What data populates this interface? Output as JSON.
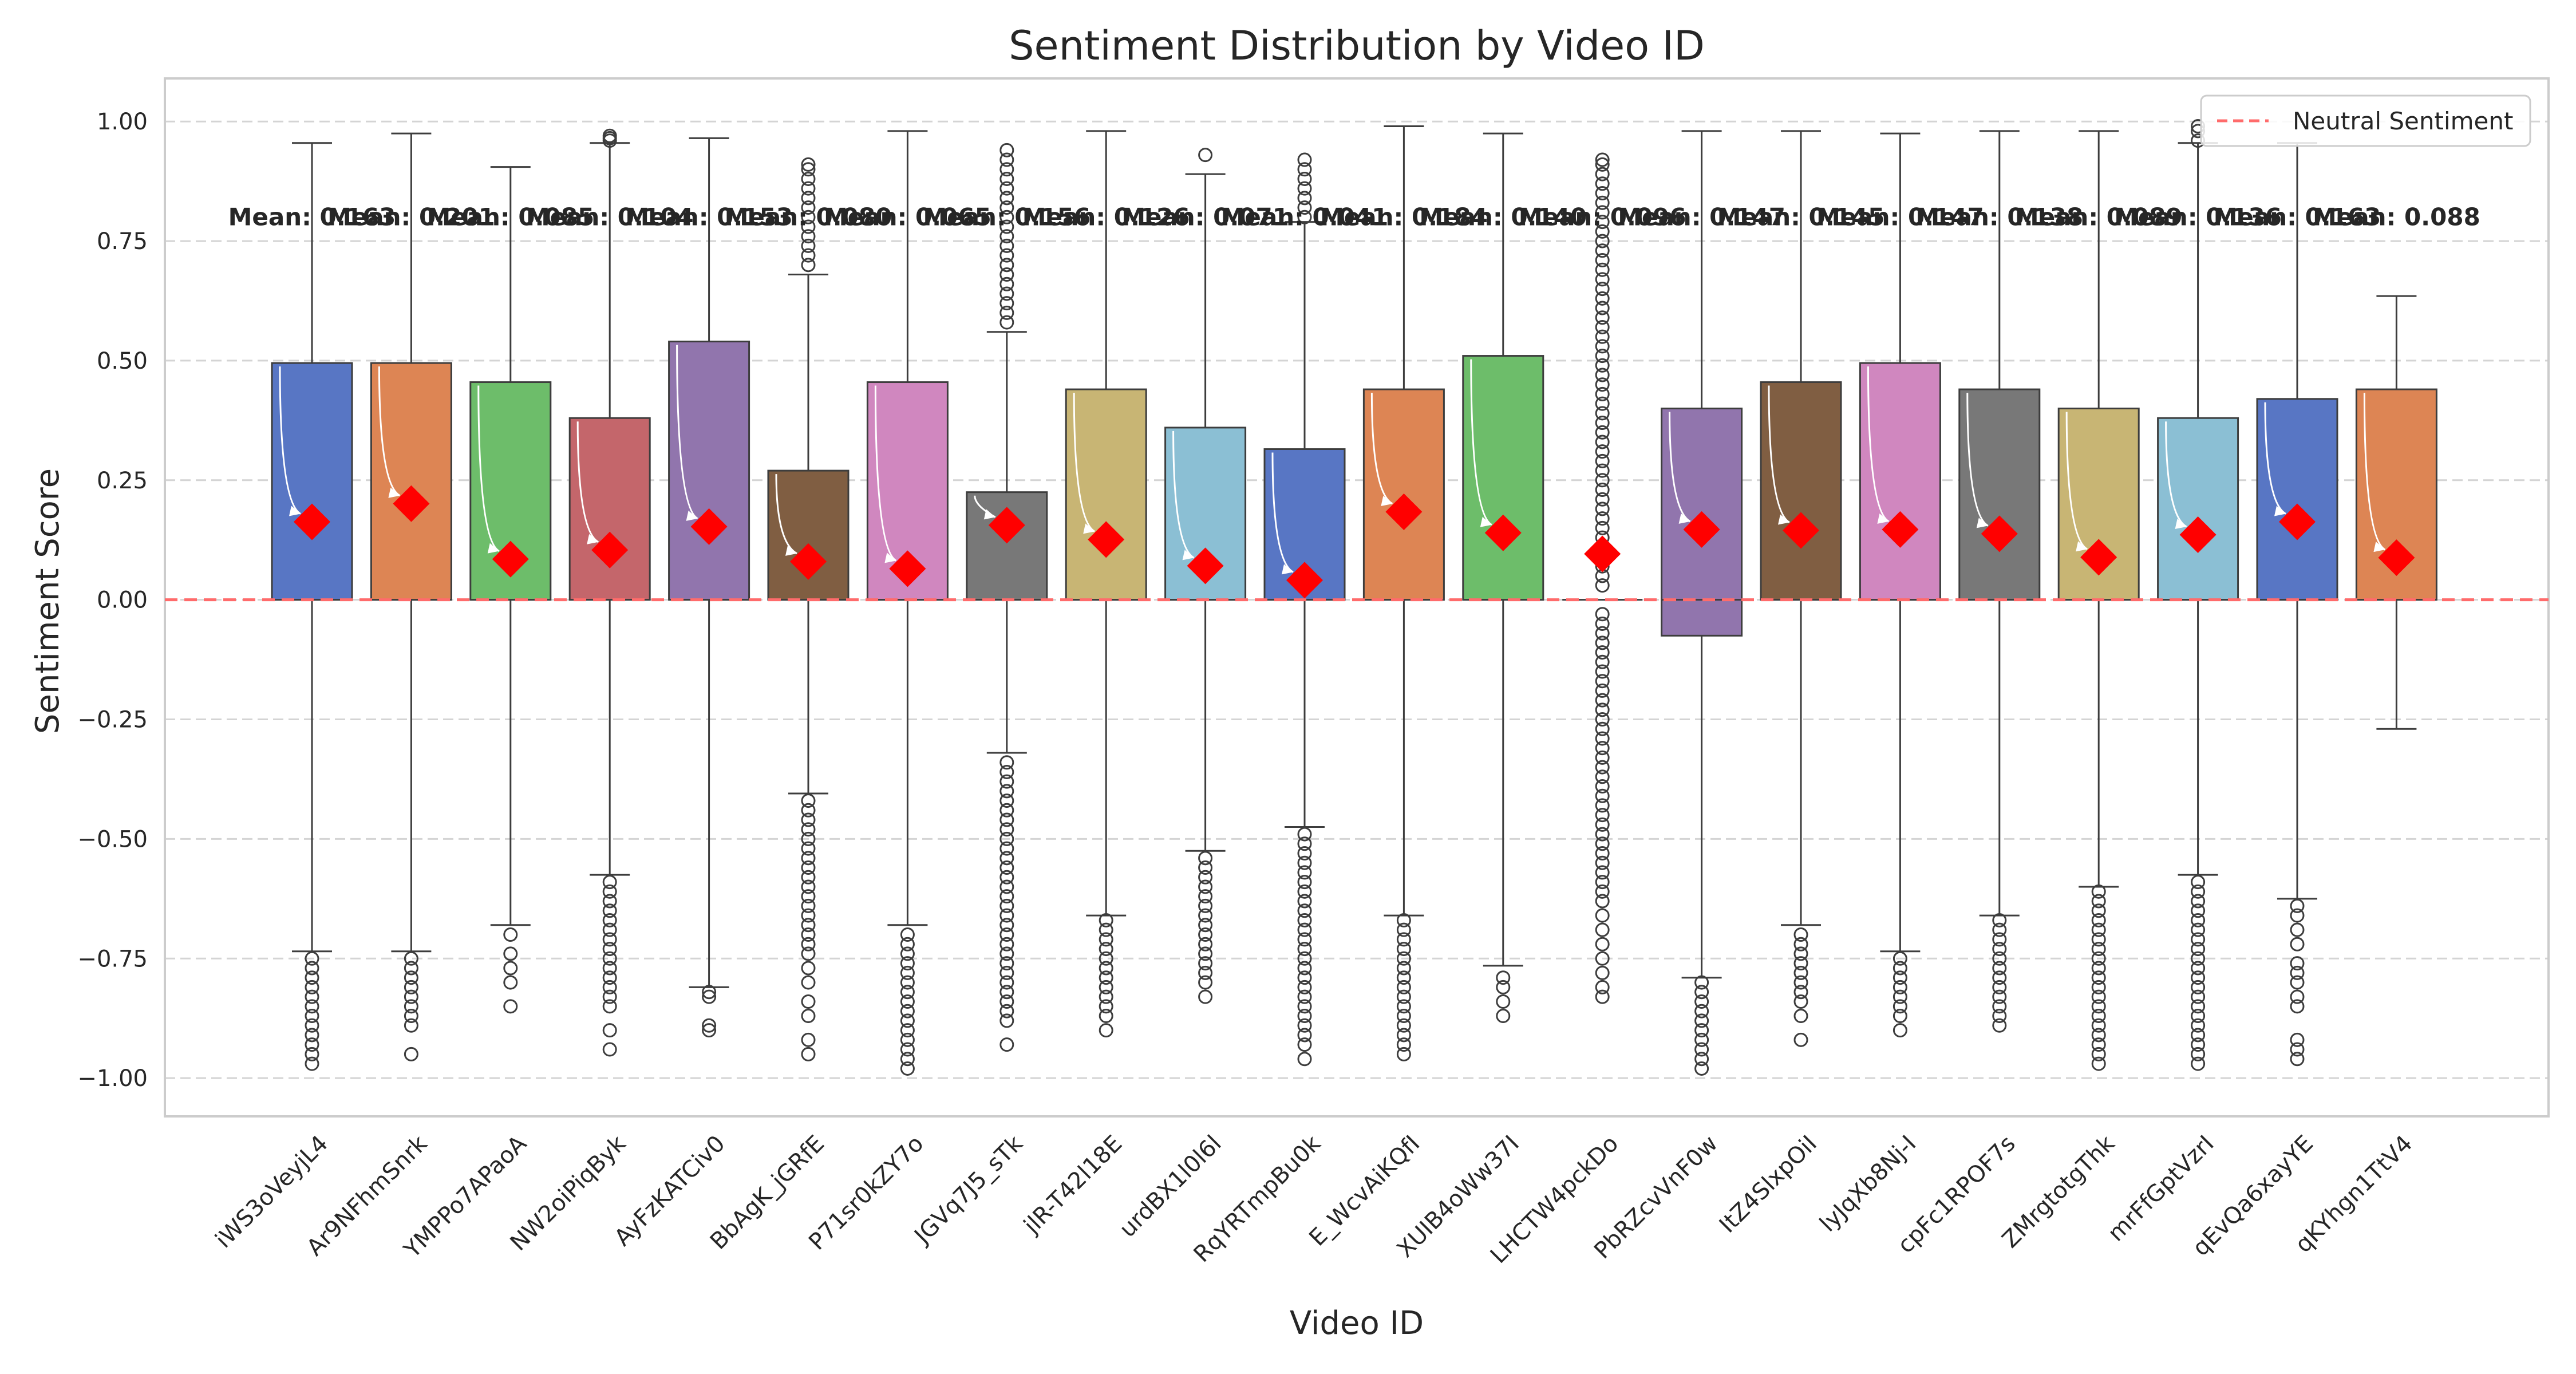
{
  "chart_data": {
    "type": "box",
    "title": "Sentiment Distribution by Video ID",
    "xlabel": "Video ID",
    "ylabel": "Sentiment Score",
    "ylim": [
      -1.08,
      1.09
    ],
    "yticks": [
      -1.0,
      -0.75,
      -0.5,
      -0.25,
      0.0,
      0.25,
      0.5,
      0.75,
      1.0
    ],
    "ytick_labels": [
      "−1.00",
      "−0.75",
      "−0.50",
      "−0.25",
      "0.00",
      "0.25",
      "0.50",
      "0.75",
      "1.00"
    ],
    "grid": true,
    "legend": {
      "placement": "top-right",
      "entries": [
        {
          "label": "Neutral Sentiment",
          "color": "#ff6b6b",
          "style": "dashed"
        }
      ]
    },
    "reference_line": {
      "y": 0.0,
      "label": "Neutral Sentiment",
      "color": "#ff6b6b"
    },
    "mean_marker_color": "#ff0000",
    "mean_label_y": 0.8,
    "categories": [
      "iWS3oVeyjL4",
      "Ar9NFhmSnrk",
      "YMPPo7APaoA",
      "NW2oiPiqByk",
      "AyFzKATCiv0",
      "BbAgK_jGRfE",
      "P71sr0kZY7o",
      "JGVq7J5_sTk",
      "jlR-T42l18E",
      "urdBX1l0l6l",
      "RqYRTmpBu0k",
      "E_WcvAiKQfI",
      "XUIB4oWw37I",
      "LHCTW4pckDo",
      "PbRZcvVnF0w",
      "ItZ4SlxpOiI",
      "lyJqXb8Nj-I",
      "cpFc1RPOF7s",
      "ZMrgtotgThk",
      "mrFfGptVzrI",
      "qEvQa6xayYE",
      "qKYhgn1TtV4"
    ],
    "boxes": [
      {
        "q1": 0.0,
        "median": 0.0,
        "q3": 0.495,
        "whisker_low": -0.735,
        "whisker_high": 0.955,
        "mean": 0.163,
        "mean_label": "Mean: 0.163",
        "color": "#5876c4",
        "outliers": [
          -0.75,
          -0.77,
          -0.79,
          -0.81,
          -0.83,
          -0.85,
          -0.87,
          -0.89,
          -0.91,
          -0.93,
          -0.95,
          -0.97
        ]
      },
      {
        "q1": 0.0,
        "median": 0.0,
        "q3": 0.495,
        "whisker_low": -0.735,
        "whisker_high": 0.975,
        "mean": 0.201,
        "mean_label": "Mean: 0.201",
        "color": "#dd8554",
        "outliers": [
          -0.75,
          -0.77,
          -0.79,
          -0.81,
          -0.83,
          -0.85,
          -0.87,
          -0.89,
          -0.95
        ]
      },
      {
        "q1": 0.0,
        "median": 0.0,
        "q3": 0.455,
        "whisker_low": -0.68,
        "whisker_high": 0.905,
        "mean": 0.085,
        "mean_label": "Mean: 0.085",
        "color": "#6dbd6a",
        "outliers": [
          -0.7,
          -0.74,
          -0.77,
          -0.8,
          -0.85
        ]
      },
      {
        "q1": 0.0,
        "median": 0.0,
        "q3": 0.38,
        "whisker_low": -0.575,
        "whisker_high": 0.955,
        "mean": 0.104,
        "mean_label": "Mean: 0.104",
        "color": "#c4666b",
        "outliers": [
          -0.59,
          -0.61,
          -0.63,
          -0.65,
          -0.67,
          -0.69,
          -0.71,
          -0.73,
          -0.75,
          -0.77,
          -0.79,
          -0.81,
          -0.83,
          -0.85,
          -0.9,
          -0.94,
          0.96,
          0.965,
          0.97
        ]
      },
      {
        "q1": 0.0,
        "median": 0.0,
        "q3": 0.54,
        "whisker_low": -0.81,
        "whisker_high": 0.965,
        "mean": 0.153,
        "mean_label": "Mean: 0.153",
        "color": "#9175ad",
        "outliers": [
          -0.82,
          -0.83,
          -0.89,
          -0.9
        ]
      },
      {
        "q1": 0.0,
        "median": 0.0,
        "q3": 0.27,
        "whisker_low": -0.405,
        "whisker_high": 0.68,
        "mean": 0.08,
        "mean_label": "Mean: 0.080",
        "color": "#805e42",
        "outliers": [
          -0.42,
          -0.44,
          -0.46,
          -0.48,
          -0.5,
          -0.52,
          -0.54,
          -0.56,
          -0.58,
          -0.6,
          -0.62,
          -0.64,
          -0.66,
          -0.68,
          -0.7,
          -0.72,
          -0.74,
          -0.77,
          -0.8,
          -0.84,
          -0.87,
          -0.92,
          -0.95,
          0.7,
          0.72,
          0.74,
          0.76,
          0.78,
          0.8,
          0.82,
          0.84,
          0.86,
          0.88,
          0.9,
          0.91
        ]
      },
      {
        "q1": 0.0,
        "median": 0.0,
        "q3": 0.455,
        "whisker_low": -0.68,
        "whisker_high": 0.98,
        "mean": 0.065,
        "mean_label": "Mean: 0.065",
        "color": "#d087bf",
        "outliers": [
          -0.7,
          -0.72,
          -0.74,
          -0.76,
          -0.78,
          -0.8,
          -0.82,
          -0.84,
          -0.86,
          -0.88,
          -0.9,
          -0.92,
          -0.94,
          -0.96,
          -0.98
        ]
      },
      {
        "q1": 0.0,
        "median": 0.0,
        "q3": 0.225,
        "whisker_low": -0.32,
        "whisker_high": 0.56,
        "mean": 0.156,
        "mean_label": "Mean: 0.156",
        "color": "#787878",
        "outliers": [
          -0.34,
          -0.36,
          -0.38,
          -0.4,
          -0.42,
          -0.44,
          -0.46,
          -0.48,
          -0.5,
          -0.52,
          -0.54,
          -0.56,
          -0.58,
          -0.6,
          -0.62,
          -0.64,
          -0.66,
          -0.68,
          -0.7,
          -0.72,
          -0.74,
          -0.76,
          -0.78,
          -0.8,
          -0.82,
          -0.84,
          -0.86,
          -0.88,
          -0.93,
          0.58,
          0.6,
          0.62,
          0.64,
          0.66,
          0.68,
          0.7,
          0.72,
          0.74,
          0.76,
          0.78,
          0.8,
          0.82,
          0.84,
          0.86,
          0.88,
          0.9,
          0.92,
          0.94
        ]
      },
      {
        "q1": 0.0,
        "median": 0.0,
        "q3": 0.44,
        "whisker_low": -0.66,
        "whisker_high": 0.98,
        "mean": 0.126,
        "mean_label": "Mean: 0.126",
        "color": "#c8b574",
        "outliers": [
          -0.67,
          -0.69,
          -0.71,
          -0.73,
          -0.75,
          -0.77,
          -0.79,
          -0.81,
          -0.83,
          -0.85,
          -0.87,
          -0.9
        ]
      },
      {
        "q1": 0.0,
        "median": 0.0,
        "q3": 0.36,
        "whisker_low": -0.525,
        "whisker_high": 0.89,
        "mean": 0.071,
        "mean_label": "Mean: 0.071",
        "color": "#8bbfd4",
        "outliers": [
          -0.54,
          -0.56,
          -0.58,
          -0.6,
          -0.62,
          -0.64,
          -0.66,
          -0.68,
          -0.7,
          -0.72,
          -0.74,
          -0.76,
          -0.78,
          -0.8,
          -0.83,
          0.93
        ]
      },
      {
        "q1": 0.0,
        "median": 0.0,
        "q3": 0.315,
        "whisker_low": -0.475,
        "whisker_high": 0.79,
        "mean": 0.041,
        "mean_label": "Mean: 0.041",
        "color": "#5876c4",
        "outliers": [
          -0.49,
          -0.51,
          -0.53,
          -0.55,
          -0.57,
          -0.59,
          -0.61,
          -0.63,
          -0.65,
          -0.67,
          -0.69,
          -0.71,
          -0.73,
          -0.75,
          -0.77,
          -0.79,
          -0.81,
          -0.83,
          -0.85,
          -0.87,
          -0.89,
          -0.91,
          -0.93,
          -0.96,
          0.8,
          0.82,
          0.84,
          0.86,
          0.88,
          0.9,
          0.92
        ]
      },
      {
        "q1": 0.0,
        "median": 0.0,
        "q3": 0.44,
        "whisker_low": -0.66,
        "whisker_high": 0.99,
        "mean": 0.184,
        "mean_label": "Mean: 0.184",
        "color": "#dd8554",
        "outliers": [
          -0.67,
          -0.69,
          -0.71,
          -0.73,
          -0.75,
          -0.77,
          -0.79,
          -0.81,
          -0.83,
          -0.85,
          -0.87,
          -0.89,
          -0.91,
          -0.93,
          -0.95
        ]
      },
      {
        "q1": 0.0,
        "median": 0.0,
        "q3": 0.51,
        "whisker_low": -0.765,
        "whisker_high": 0.975,
        "mean": 0.14,
        "mean_label": "Mean: 0.140",
        "color": "#6dbd6a",
        "outliers": [
          -0.79,
          -0.81,
          -0.84,
          -0.87
        ]
      },
      {
        "q1": 0.0,
        "median": 0.0,
        "q3": 0.0,
        "whisker_low": 0.0,
        "whisker_high": 0.0,
        "mean": 0.096,
        "mean_label": "Mean: 0.096",
        "color": "#c4666b",
        "outliers": [
          -0.03,
          -0.05,
          -0.07,
          -0.09,
          -0.11,
          -0.13,
          -0.15,
          -0.17,
          -0.19,
          -0.21,
          -0.23,
          -0.25,
          -0.27,
          -0.29,
          -0.31,
          -0.33,
          -0.35,
          -0.37,
          -0.39,
          -0.41,
          -0.43,
          -0.45,
          -0.47,
          -0.49,
          -0.51,
          -0.53,
          -0.55,
          -0.57,
          -0.59,
          -0.61,
          -0.63,
          -0.66,
          -0.69,
          -0.72,
          -0.75,
          -0.78,
          -0.81,
          -0.83,
          0.03,
          0.05,
          0.07,
          0.09,
          0.11,
          0.13,
          0.15,
          0.17,
          0.19,
          0.21,
          0.23,
          0.25,
          0.27,
          0.29,
          0.31,
          0.33,
          0.35,
          0.37,
          0.39,
          0.41,
          0.43,
          0.45,
          0.47,
          0.49,
          0.51,
          0.53,
          0.55,
          0.57,
          0.59,
          0.61,
          0.63,
          0.65,
          0.67,
          0.69,
          0.71,
          0.73,
          0.75,
          0.77,
          0.79,
          0.81,
          0.83,
          0.85,
          0.87,
          0.89,
          0.91,
          0.92
        ]
      },
      {
        "q1": -0.075,
        "median": 0.0,
        "q3": 0.4,
        "whisker_low": -0.79,
        "whisker_high": 0.98,
        "mean": 0.147,
        "mean_label": "Mean: 0.147",
        "color": "#9175ad",
        "outliers": [
          -0.8,
          -0.82,
          -0.84,
          -0.86,
          -0.88,
          -0.9,
          -0.92,
          -0.94,
          -0.96,
          -0.98
        ]
      },
      {
        "q1": 0.0,
        "median": 0.0,
        "q3": 0.455,
        "whisker_low": -0.68,
        "whisker_high": 0.98,
        "mean": 0.145,
        "mean_label": "Mean: 0.145",
        "color": "#805e42",
        "outliers": [
          -0.7,
          -0.72,
          -0.74,
          -0.76,
          -0.78,
          -0.8,
          -0.82,
          -0.84,
          -0.87,
          -0.92
        ]
      },
      {
        "q1": 0.0,
        "median": 0.0,
        "q3": 0.495,
        "whisker_low": -0.735,
        "whisker_high": 0.975,
        "mean": 0.147,
        "mean_label": "Mean: 0.147",
        "color": "#d087bf",
        "outliers": [
          -0.75,
          -0.77,
          -0.79,
          -0.81,
          -0.83,
          -0.85,
          -0.87,
          -0.9
        ]
      },
      {
        "q1": 0.0,
        "median": 0.0,
        "q3": 0.44,
        "whisker_low": -0.66,
        "whisker_high": 0.98,
        "mean": 0.138,
        "mean_label": "Mean: 0.138",
        "color": "#787878",
        "outliers": [
          -0.67,
          -0.69,
          -0.71,
          -0.73,
          -0.75,
          -0.77,
          -0.79,
          -0.81,
          -0.83,
          -0.85,
          -0.87,
          -0.89
        ]
      },
      {
        "q1": 0.0,
        "median": 0.0,
        "q3": 0.4,
        "whisker_low": -0.6,
        "whisker_high": 0.98,
        "mean": 0.089,
        "mean_label": "Mean: 0.089",
        "color": "#c8b574",
        "outliers": [
          -0.61,
          -0.63,
          -0.65,
          -0.67,
          -0.69,
          -0.71,
          -0.73,
          -0.75,
          -0.77,
          -0.79,
          -0.81,
          -0.83,
          -0.85,
          -0.87,
          -0.89,
          -0.91,
          -0.93,
          -0.95,
          -0.97
        ]
      },
      {
        "q1": 0.0,
        "median": 0.0,
        "q3": 0.38,
        "whisker_low": -0.575,
        "whisker_high": 0.955,
        "mean": 0.136,
        "mean_label": "Mean: 0.136",
        "color": "#8bbfd4",
        "outliers": [
          -0.59,
          -0.61,
          -0.63,
          -0.65,
          -0.67,
          -0.69,
          -0.71,
          -0.73,
          -0.75,
          -0.77,
          -0.79,
          -0.81,
          -0.83,
          -0.85,
          -0.87,
          -0.89,
          -0.91,
          -0.93,
          -0.95,
          -0.97,
          0.96,
          0.98,
          0.99
        ]
      },
      {
        "q1": 0.0,
        "median": 0.0,
        "q3": 0.42,
        "whisker_low": -0.625,
        "whisker_high": 0.955,
        "mean": 0.163,
        "mean_label": "Mean: 0.163",
        "color": "#5876c4",
        "outliers": [
          -0.64,
          -0.66,
          -0.69,
          -0.72,
          -0.76,
          -0.78,
          -0.8,
          -0.83,
          -0.85,
          -0.92,
          -0.94,
          -0.96
        ]
      },
      {
        "q1": 0.0,
        "median": 0.0,
        "q3": 0.44,
        "whisker_low": -0.27,
        "whisker_high": 0.635,
        "mean": 0.088,
        "mean_label": "Mean: 0.088",
        "color": "#dd8554",
        "outliers": []
      }
    ]
  }
}
